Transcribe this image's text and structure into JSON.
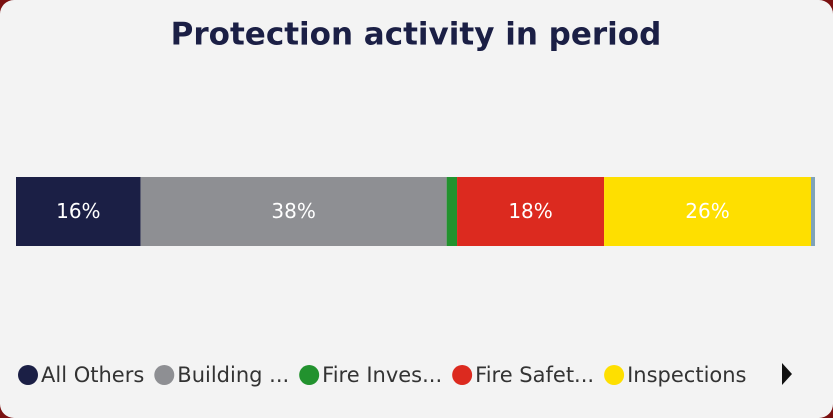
{
  "chart_data": {
    "type": "stacked-bar-100",
    "title": "Protection activity in period",
    "xlim": [
      0,
      100
    ],
    "series": [
      {
        "name": "All Others",
        "color": "#1b1f45",
        "values": [
          15.6
        ],
        "value_labels": [
          "16%"
        ]
      },
      {
        "name": "Building ...",
        "color": "#8e8f93",
        "values": [
          38.3
        ],
        "value_labels": [
          "38%"
        ]
      },
      {
        "name": "Fire Inves...",
        "color": "#22922e",
        "values": [
          1.3
        ]
      },
      {
        "name": "Fire Safet...",
        "color": "#dc2a1f",
        "values": [
          18.4
        ],
        "value_labels": [
          "18%"
        ]
      },
      {
        "name": "Inspections",
        "color": "#fedf00",
        "values": [
          25.9
        ],
        "value_labels": [
          "26%"
        ]
      },
      {
        "name": null,
        "color": "#7fa3b8",
        "values": [
          0.5
        ]
      }
    ]
  }
}
